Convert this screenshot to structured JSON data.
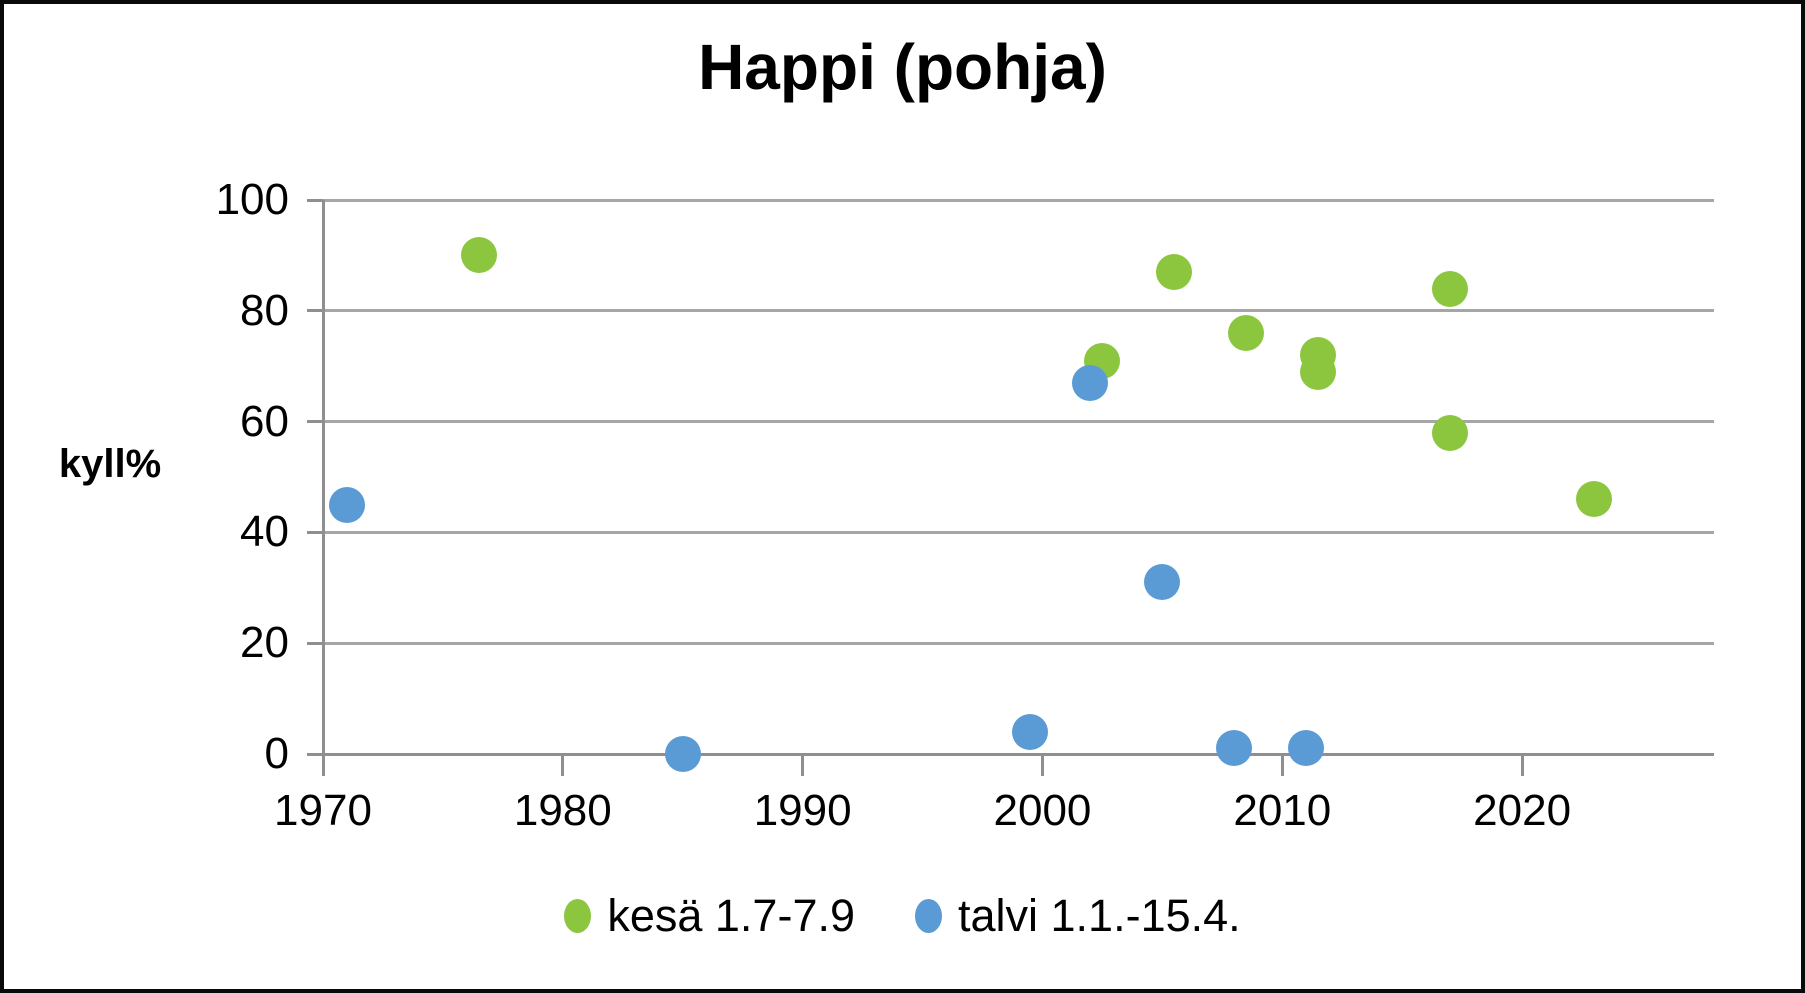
{
  "chart_data": {
    "type": "scatter",
    "title": "Happi (pohja)",
    "xlabel": "",
    "ylabel": "kyll%",
    "xlim": [
      1970,
      2028
    ],
    "ylim": [
      0,
      100
    ],
    "x_ticks": [
      1970,
      1980,
      1990,
      2000,
      2010,
      2020
    ],
    "y_ticks": [
      0,
      20,
      40,
      60,
      80,
      100
    ],
    "grid": "horizontal",
    "legend_position": "bottom",
    "series": [
      {
        "name": "kesä 1.7-7.9",
        "color": "#8cc63f",
        "marker": "circle",
        "points": [
          [
            1976.5,
            90
          ],
          [
            2002.5,
            71
          ],
          [
            2005.5,
            87
          ],
          [
            2008.5,
            76
          ],
          [
            2011.5,
            72
          ],
          [
            2011.5,
            69
          ],
          [
            2017,
            84
          ],
          [
            2017,
            58
          ],
          [
            2023,
            46
          ]
        ]
      },
      {
        "name": "talvi 1.1.-15.4.",
        "color": "#5b9bd5",
        "marker": "circle",
        "points": [
          [
            1971,
            45
          ],
          [
            1985,
            0
          ],
          [
            1999.5,
            4
          ],
          [
            2002,
            67
          ],
          [
            2005,
            31
          ],
          [
            2008,
            1
          ],
          [
            2011,
            1
          ]
        ]
      }
    ],
    "palette": {
      "grid_gray": "#a6a6a6",
      "axis_gray": "#8f8f8f",
      "text_black": "#000000",
      "border_black": "#0a0a0a",
      "background_white": "#ffffff"
    }
  }
}
